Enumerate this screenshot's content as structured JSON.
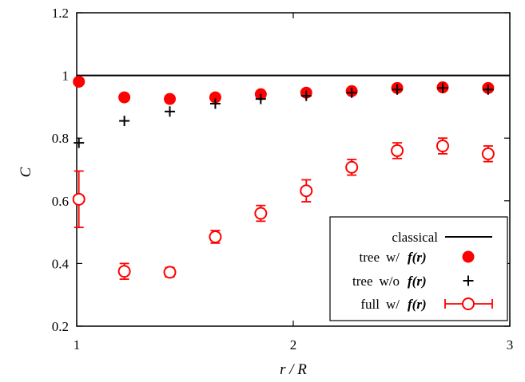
{
  "chart_data": {
    "type": "scatter",
    "xlabel": "r / R",
    "ylabel": "C",
    "xlim": [
      1,
      3
    ],
    "ylim": [
      0.2,
      1.2
    ],
    "xticks": [
      1,
      2,
      3
    ],
    "yticks": [
      0.2,
      0.4,
      0.6,
      0.8,
      1.0,
      1.2
    ],
    "xtick_labels": [
      "1",
      "2",
      "3"
    ],
    "ytick_labels": [
      "0.2",
      "0.4",
      "0.6",
      "0.8",
      "1",
      "1.2"
    ],
    "grid": false,
    "legend_position": "bottom-right",
    "colors": {
      "black": "#000000",
      "red": "#ff0000"
    },
    "series": [
      {
        "name": "classical",
        "legend_parts": [
          "classical"
        ],
        "legend_func": "",
        "style": "line",
        "color": "#000000",
        "x": [
          1,
          3
        ],
        "y": [
          1.0,
          1.0
        ]
      },
      {
        "name": "tree w/ f(r)",
        "legend_parts": [
          "tree",
          "w/"
        ],
        "legend_func": "f(r)",
        "style": "filled-circle",
        "color": "#ff0000",
        "x": [
          1.01,
          1.22,
          1.43,
          1.64,
          1.85,
          2.06,
          2.27,
          2.48,
          2.69,
          2.9
        ],
        "y": [
          0.98,
          0.93,
          0.925,
          0.93,
          0.94,
          0.945,
          0.95,
          0.96,
          0.962,
          0.96
        ]
      },
      {
        "name": "tree w/o f(r)",
        "legend_parts": [
          "tree",
          "w/o"
        ],
        "legend_func": "f(r)",
        "style": "plus",
        "color": "#000000",
        "x": [
          1.01,
          1.22,
          1.43,
          1.64,
          1.85,
          2.06,
          2.27,
          2.48,
          2.69,
          2.9
        ],
        "y": [
          0.785,
          0.855,
          0.885,
          0.91,
          0.925,
          0.935,
          0.945,
          0.955,
          0.96,
          0.955
        ]
      },
      {
        "name": "full w/ f(r)",
        "legend_parts": [
          "full",
          "w/"
        ],
        "legend_func": "f(r)",
        "style": "open-circle-errorbar",
        "color": "#ff0000",
        "x": [
          1.01,
          1.22,
          1.43,
          1.64,
          1.85,
          2.06,
          2.27,
          2.48,
          2.69,
          2.9
        ],
        "y": [
          0.605,
          0.375,
          0.372,
          0.485,
          0.56,
          0.632,
          0.707,
          0.76,
          0.775,
          0.75
        ],
        "yerr": [
          0.09,
          0.025,
          0.015,
          0.02,
          0.025,
          0.035,
          0.025,
          0.025,
          0.025,
          0.025
        ]
      }
    ]
  }
}
